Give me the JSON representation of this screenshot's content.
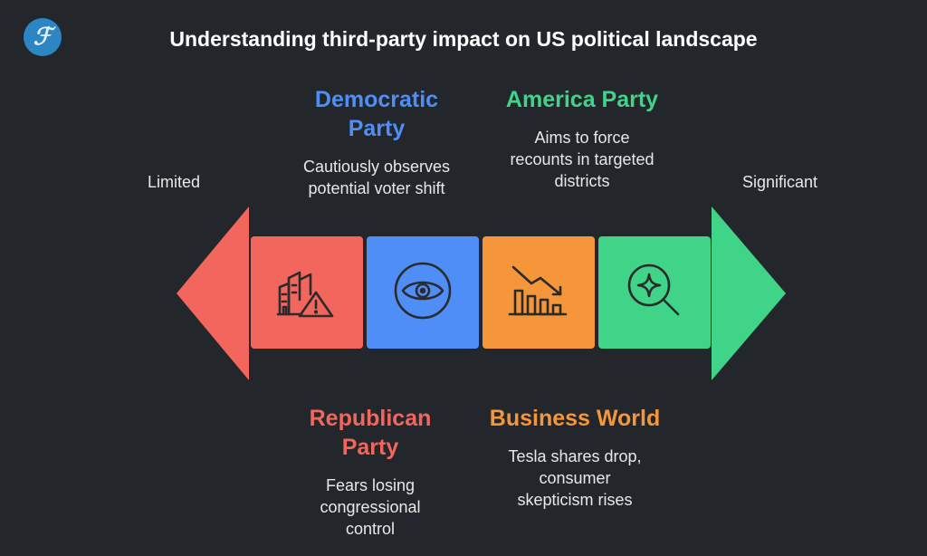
{
  "title": "Understanding third-party impact on US political landscape",
  "logo": {
    "glyph": "ℱ"
  },
  "scale": {
    "left_label": "Limited",
    "right_label": "Significant"
  },
  "colors": {
    "background": "#23272c",
    "red": "#f3665e",
    "blue": "#4f8ef7",
    "orange": "#f5963a",
    "green": "#3fd487",
    "icon_stroke": "#2b2b2b"
  },
  "blocks": [
    {
      "icon": "building-warning-icon",
      "color": "#f3665e"
    },
    {
      "icon": "eye-icon",
      "color": "#4f8ef7"
    },
    {
      "icon": "declining-bar-chart-icon",
      "color": "#f5963a"
    },
    {
      "icon": "magnifier-sparkle-icon",
      "color": "#3fd487"
    }
  ],
  "items": {
    "democratic": {
      "heading_line1": "Democratic",
      "heading_line2": "Party",
      "desc_line1": "Cautiously observes",
      "desc_line2": "potential voter shift"
    },
    "america": {
      "heading": "America Party",
      "desc_line1": "Aims to force",
      "desc_line2": "recounts in targeted",
      "desc_line3": "districts"
    },
    "republican": {
      "heading_line1": "Republican",
      "heading_line2": "Party",
      "desc_line1": "Fears losing",
      "desc_line2": "congressional",
      "desc_line3": "control"
    },
    "business": {
      "heading": "Business World",
      "desc_line1": "Tesla shares drop,",
      "desc_line2": "consumer",
      "desc_line3": "skepticism rises"
    }
  }
}
